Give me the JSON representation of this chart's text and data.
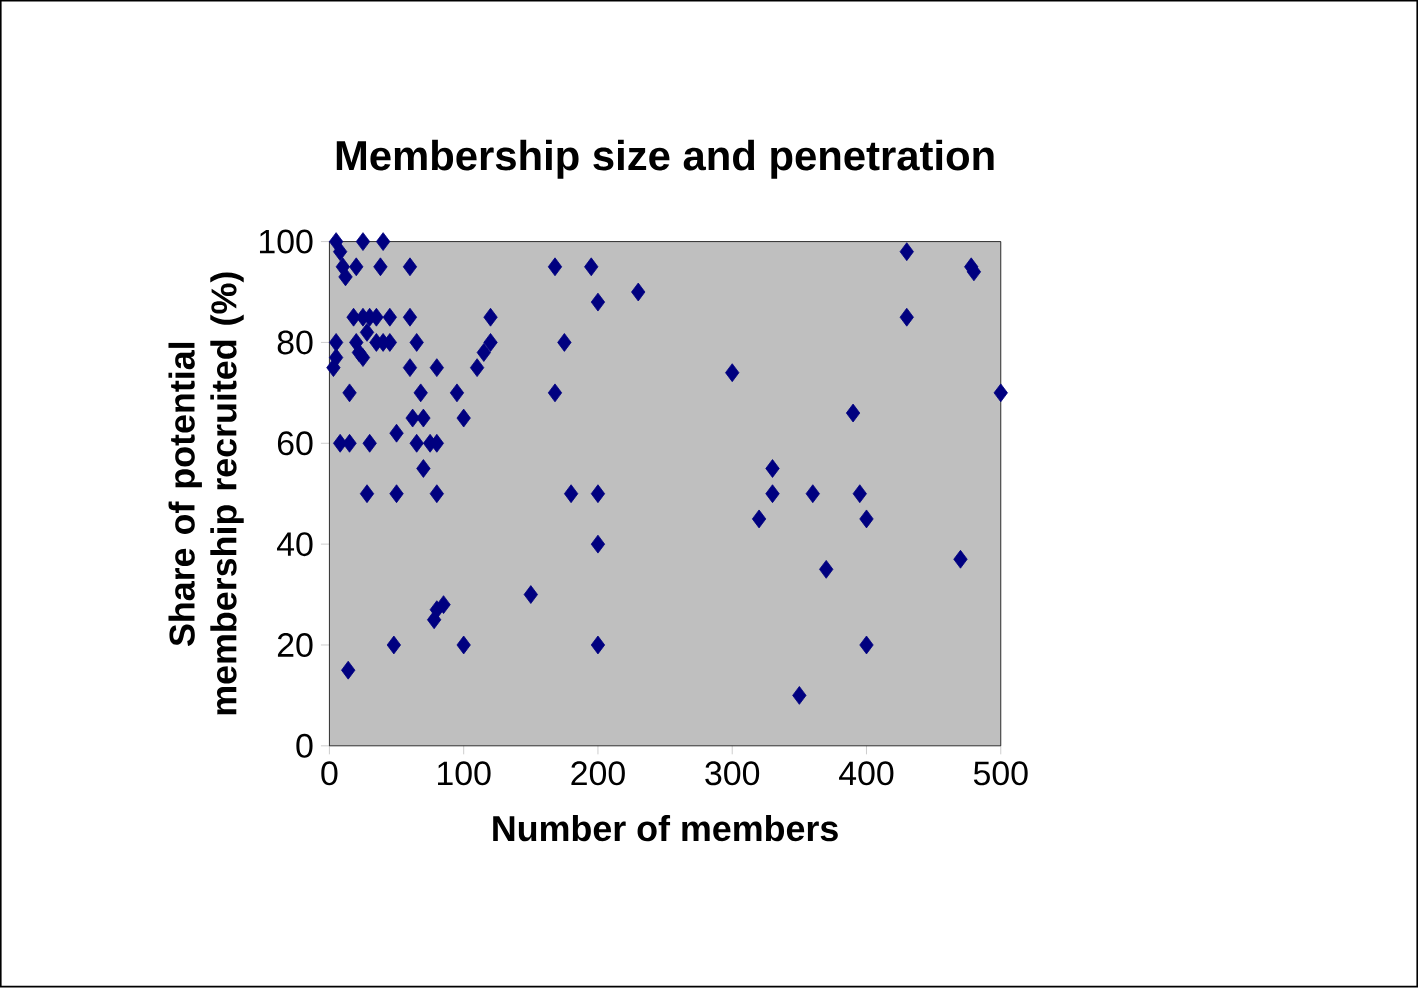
{
  "chart_data": {
    "type": "scatter",
    "title": "Membership size and penetration",
    "xlabel": "Number of members",
    "ylabel": "Share of potential membership recruited (%)",
    "x": [
      5,
      8,
      10,
      5,
      3,
      5,
      8,
      15,
      12,
      15,
      14,
      20,
      18,
      20,
      22,
      25,
      25,
      25,
      28,
      30,
      30,
      28,
      35,
      35,
      38,
      40,
      40,
      45,
      45,
      48,
      50,
      50,
      60,
      60,
      60,
      62,
      65,
      65,
      68,
      70,
      70,
      75,
      78,
      80,
      80,
      80,
      80,
      85,
      95,
      100,
      100,
      110,
      115,
      120,
      120,
      150,
      168,
      168,
      175,
      180,
      195,
      200,
      200,
      200,
      200,
      230,
      300,
      320,
      330,
      330,
      350,
      360,
      370,
      390,
      395,
      400,
      400,
      430,
      430,
      470,
      478,
      480,
      500
    ],
    "values": [
      100,
      98,
      95,
      80,
      75,
      77,
      60,
      60,
      93,
      70,
      15,
      95,
      85,
      80,
      78,
      85,
      100,
      77,
      82,
      85,
      60,
      50,
      80,
      85,
      95,
      100,
      80,
      85,
      80,
      20,
      62,
      50,
      95,
      85,
      75,
      65,
      60,
      80,
      70,
      55,
      65,
      60,
      25,
      27,
      75,
      50,
      60,
      28,
      70,
      65,
      20,
      75,
      78,
      85,
      80,
      30,
      95,
      70,
      80,
      50,
      95,
      88,
      50,
      40,
      20,
      90,
      74,
      45,
      55,
      50,
      10,
      50,
      35,
      66,
      50,
      45,
      20,
      98,
      85,
      37,
      95,
      94,
      70
    ],
    "color": "#000080",
    "marker": "diamond",
    "xlim": [
      0,
      500
    ],
    "ylim": [
      0,
      100
    ],
    "xticks": [
      0,
      100,
      200,
      300,
      400,
      500
    ],
    "yticks": [
      0,
      20,
      40,
      60,
      80,
      100
    ],
    "grid": false
  }
}
